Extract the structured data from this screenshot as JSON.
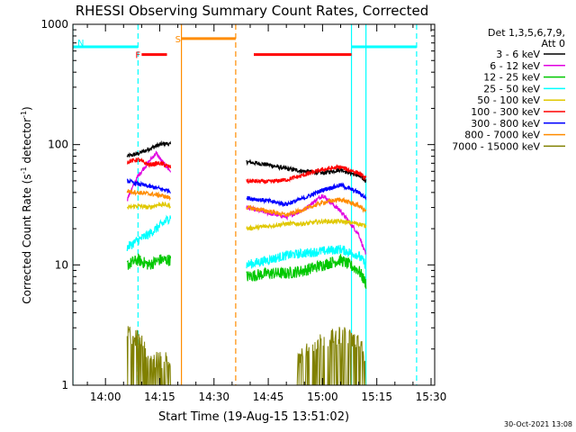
{
  "chart_data": {
    "type": "line",
    "title": "RHESSI Observing Summary Count Rates, Corrected",
    "xlabel": "Start Time (19-Aug-15 13:51:02)",
    "ylabel_parts": [
      "Corrected Count Rate (s",
      "-1",
      " detector",
      "-1",
      ")"
    ],
    "ylabel": "Corrected Count Rate (s-1 detector-1)",
    "y_scale": "log",
    "ylim": [
      1,
      1000
    ],
    "xlim": [
      "13:51",
      "15:31"
    ],
    "x_ticks": [
      "14:00",
      "14:15",
      "14:30",
      "14:45",
      "15:00",
      "15:15",
      "15:30"
    ],
    "y_ticks": [
      "1",
      "10",
      "100",
      "1000"
    ],
    "legend_position": "right, outside plot",
    "legend_header": [
      "Det 1,3,5,6,7,9,",
      "Att 0"
    ],
    "series": [
      {
        "name": "3 - 6 keV",
        "color": "#000000",
        "segments": [
          {
            "t": [
              "14:06",
              "14:09",
              "14:12",
              "14:15",
              "14:17",
              "14:18"
            ],
            "y": [
              80,
              84,
              92,
              100,
              102,
              100
            ]
          },
          {
            "t": [
              "14:39",
              "14:45",
              "14:50",
              "14:55",
              "15:00",
              "15:05",
              "15:10",
              "15:12"
            ],
            "y": [
              72,
              68,
              63,
              60,
              58,
              62,
              55,
              50
            ]
          }
        ]
      },
      {
        "name": "6 - 12 keV",
        "color": "#e000e0",
        "segments": [
          {
            "t": [
              "14:06",
              "14:09",
              "14:12",
              "14:14",
              "14:16",
              "14:18"
            ],
            "y": [
              35,
              55,
              72,
              85,
              70,
              60
            ]
          },
          {
            "t": [
              "14:39",
              "14:45",
              "14:50",
              "14:55",
              "15:00",
              "15:05",
              "15:10",
              "15:12"
            ],
            "y": [
              30,
              27,
              25,
              29,
              38,
              28,
              18,
              12
            ]
          }
        ]
      },
      {
        "name": "12 - 25 keV",
        "color": "#00c800",
        "segments": [
          {
            "t": [
              "14:06",
              "14:09",
              "14:12",
              "14:15",
              "14:18"
            ],
            "y": [
              10,
              11,
              10,
              11,
              11
            ]
          },
          {
            "t": [
              "14:39",
              "14:45",
              "14:50",
              "14:55",
              "15:00",
              "15:05",
              "15:10",
              "15:12"
            ],
            "y": [
              8,
              8.5,
              8.5,
              9,
              10,
              11,
              9,
              7
            ]
          }
        ]
      },
      {
        "name": "25 - 50 keV",
        "color": "#00ffff",
        "segments": [
          {
            "t": [
              "14:06",
              "14:09",
              "14:12",
              "14:15",
              "14:18"
            ],
            "y": [
              14,
              16,
              18,
              21,
              25
            ]
          },
          {
            "t": [
              "14:39",
              "14:45",
              "14:50",
              "14:55",
              "15:00",
              "15:05",
              "15:10",
              "15:12"
            ],
            "y": [
              10,
              11,
              12,
              12.5,
              13,
              13.5,
              12,
              10
            ]
          }
        ]
      },
      {
        "name": "50 - 100 keV",
        "color": "#e0c800",
        "segments": [
          {
            "t": [
              "14:06",
              "14:09",
              "14:12",
              "14:15",
              "14:18"
            ],
            "y": [
              30,
              31,
              30,
              32,
              31
            ]
          },
          {
            "t": [
              "14:39",
              "14:45",
              "14:50",
              "14:55",
              "15:00",
              "15:05",
              "15:10",
              "15:12"
            ],
            "y": [
              20,
              21,
              22,
              22,
              23,
              23,
              22,
              21
            ]
          }
        ]
      },
      {
        "name": "100 - 300 keV",
        "color": "#ff0000",
        "segments": [
          {
            "t": [
              "14:06",
              "14:09",
              "14:12",
              "14:15",
              "14:18"
            ],
            "y": [
              72,
              75,
              68,
              70,
              65
            ]
          },
          {
            "t": [
              "14:39",
              "14:45",
              "14:50",
              "14:55",
              "15:00",
              "15:05",
              "15:10",
              "15:12"
            ],
            "y": [
              50,
              49,
              51,
              56,
              62,
              65,
              58,
              52
            ]
          }
        ]
      },
      {
        "name": "300 - 800 keV",
        "color": "#0000ff",
        "segments": [
          {
            "t": [
              "14:06",
              "14:09",
              "14:12",
              "14:15",
              "14:18"
            ],
            "y": [
              50,
              47,
              45,
              43,
              41
            ]
          },
          {
            "t": [
              "14:39",
              "14:45",
              "14:50",
              "14:55",
              "15:00",
              "15:05",
              "15:10",
              "15:12"
            ],
            "y": [
              36,
              34,
              32,
              36,
              42,
              46,
              40,
              36
            ]
          }
        ]
      },
      {
        "name": "800 - 7000 keV",
        "color": "#ff8c00",
        "segments": [
          {
            "t": [
              "14:06",
              "14:09",
              "14:12",
              "14:15",
              "14:18"
            ],
            "y": [
              41,
              40,
              39,
              38,
              36
            ]
          },
          {
            "t": [
              "14:39",
              "14:45",
              "14:50",
              "14:55",
              "15:00",
              "15:05",
              "15:10",
              "15:12"
            ],
            "y": [
              30,
              28,
              26,
              29,
              33,
              35,
              31,
              28
            ]
          }
        ]
      },
      {
        "name": "7000 - 15000 keV",
        "color": "#808000",
        "segments": [
          {
            "t": [
              "14:06",
              "14:08",
              "14:10",
              "14:14",
              "14:18"
            ],
            "y": [
              2.7,
              2.5,
              2.2,
              1.6,
              1.6
            ]
          },
          {
            "t": [
              "14:53",
              "14:56",
              "15:00",
              "15:05",
              "15:10",
              "15:12"
            ],
            "y": [
              1.6,
              2.1,
              2.3,
              2.6,
              2.3,
              1.6
            ]
          }
        ]
      }
    ],
    "state_bars": [
      {
        "label": "N",
        "color": "#00ffff",
        "start": "13:51",
        "end": "14:09",
        "y": 650
      },
      {
        "label": "",
        "color": "#00ffff",
        "start": "15:08",
        "end": "15:26",
        "y": 650
      },
      {
        "label": "F",
        "color": "#ff0000",
        "start": "14:10",
        "end": "14:17",
        "y": 560
      },
      {
        "label": "",
        "color": "#ff0000",
        "start": "14:41",
        "end": "15:08",
        "y": 560
      },
      {
        "label": "S",
        "color": "#ff8c00",
        "start": "14:21",
        "end": "14:36",
        "y": 760
      }
    ],
    "vertical_markers": [
      {
        "t": "13:51",
        "color": "#00ffff",
        "style": "solid"
      },
      {
        "t": "14:09",
        "color": "#00ffff",
        "style": "dashed"
      },
      {
        "t": "14:21",
        "color": "#ff8c00",
        "style": "solid"
      },
      {
        "t": "14:36",
        "color": "#ff8c00",
        "style": "dashed"
      },
      {
        "t": "15:08",
        "color": "#00ffff",
        "style": "solid"
      },
      {
        "t": "15:12",
        "color": "#00ffff",
        "style": "solid"
      },
      {
        "t": "15:26",
        "color": "#00ffff",
        "style": "dashed"
      }
    ],
    "footer_date": "30-Oct-2021 13:08"
  }
}
